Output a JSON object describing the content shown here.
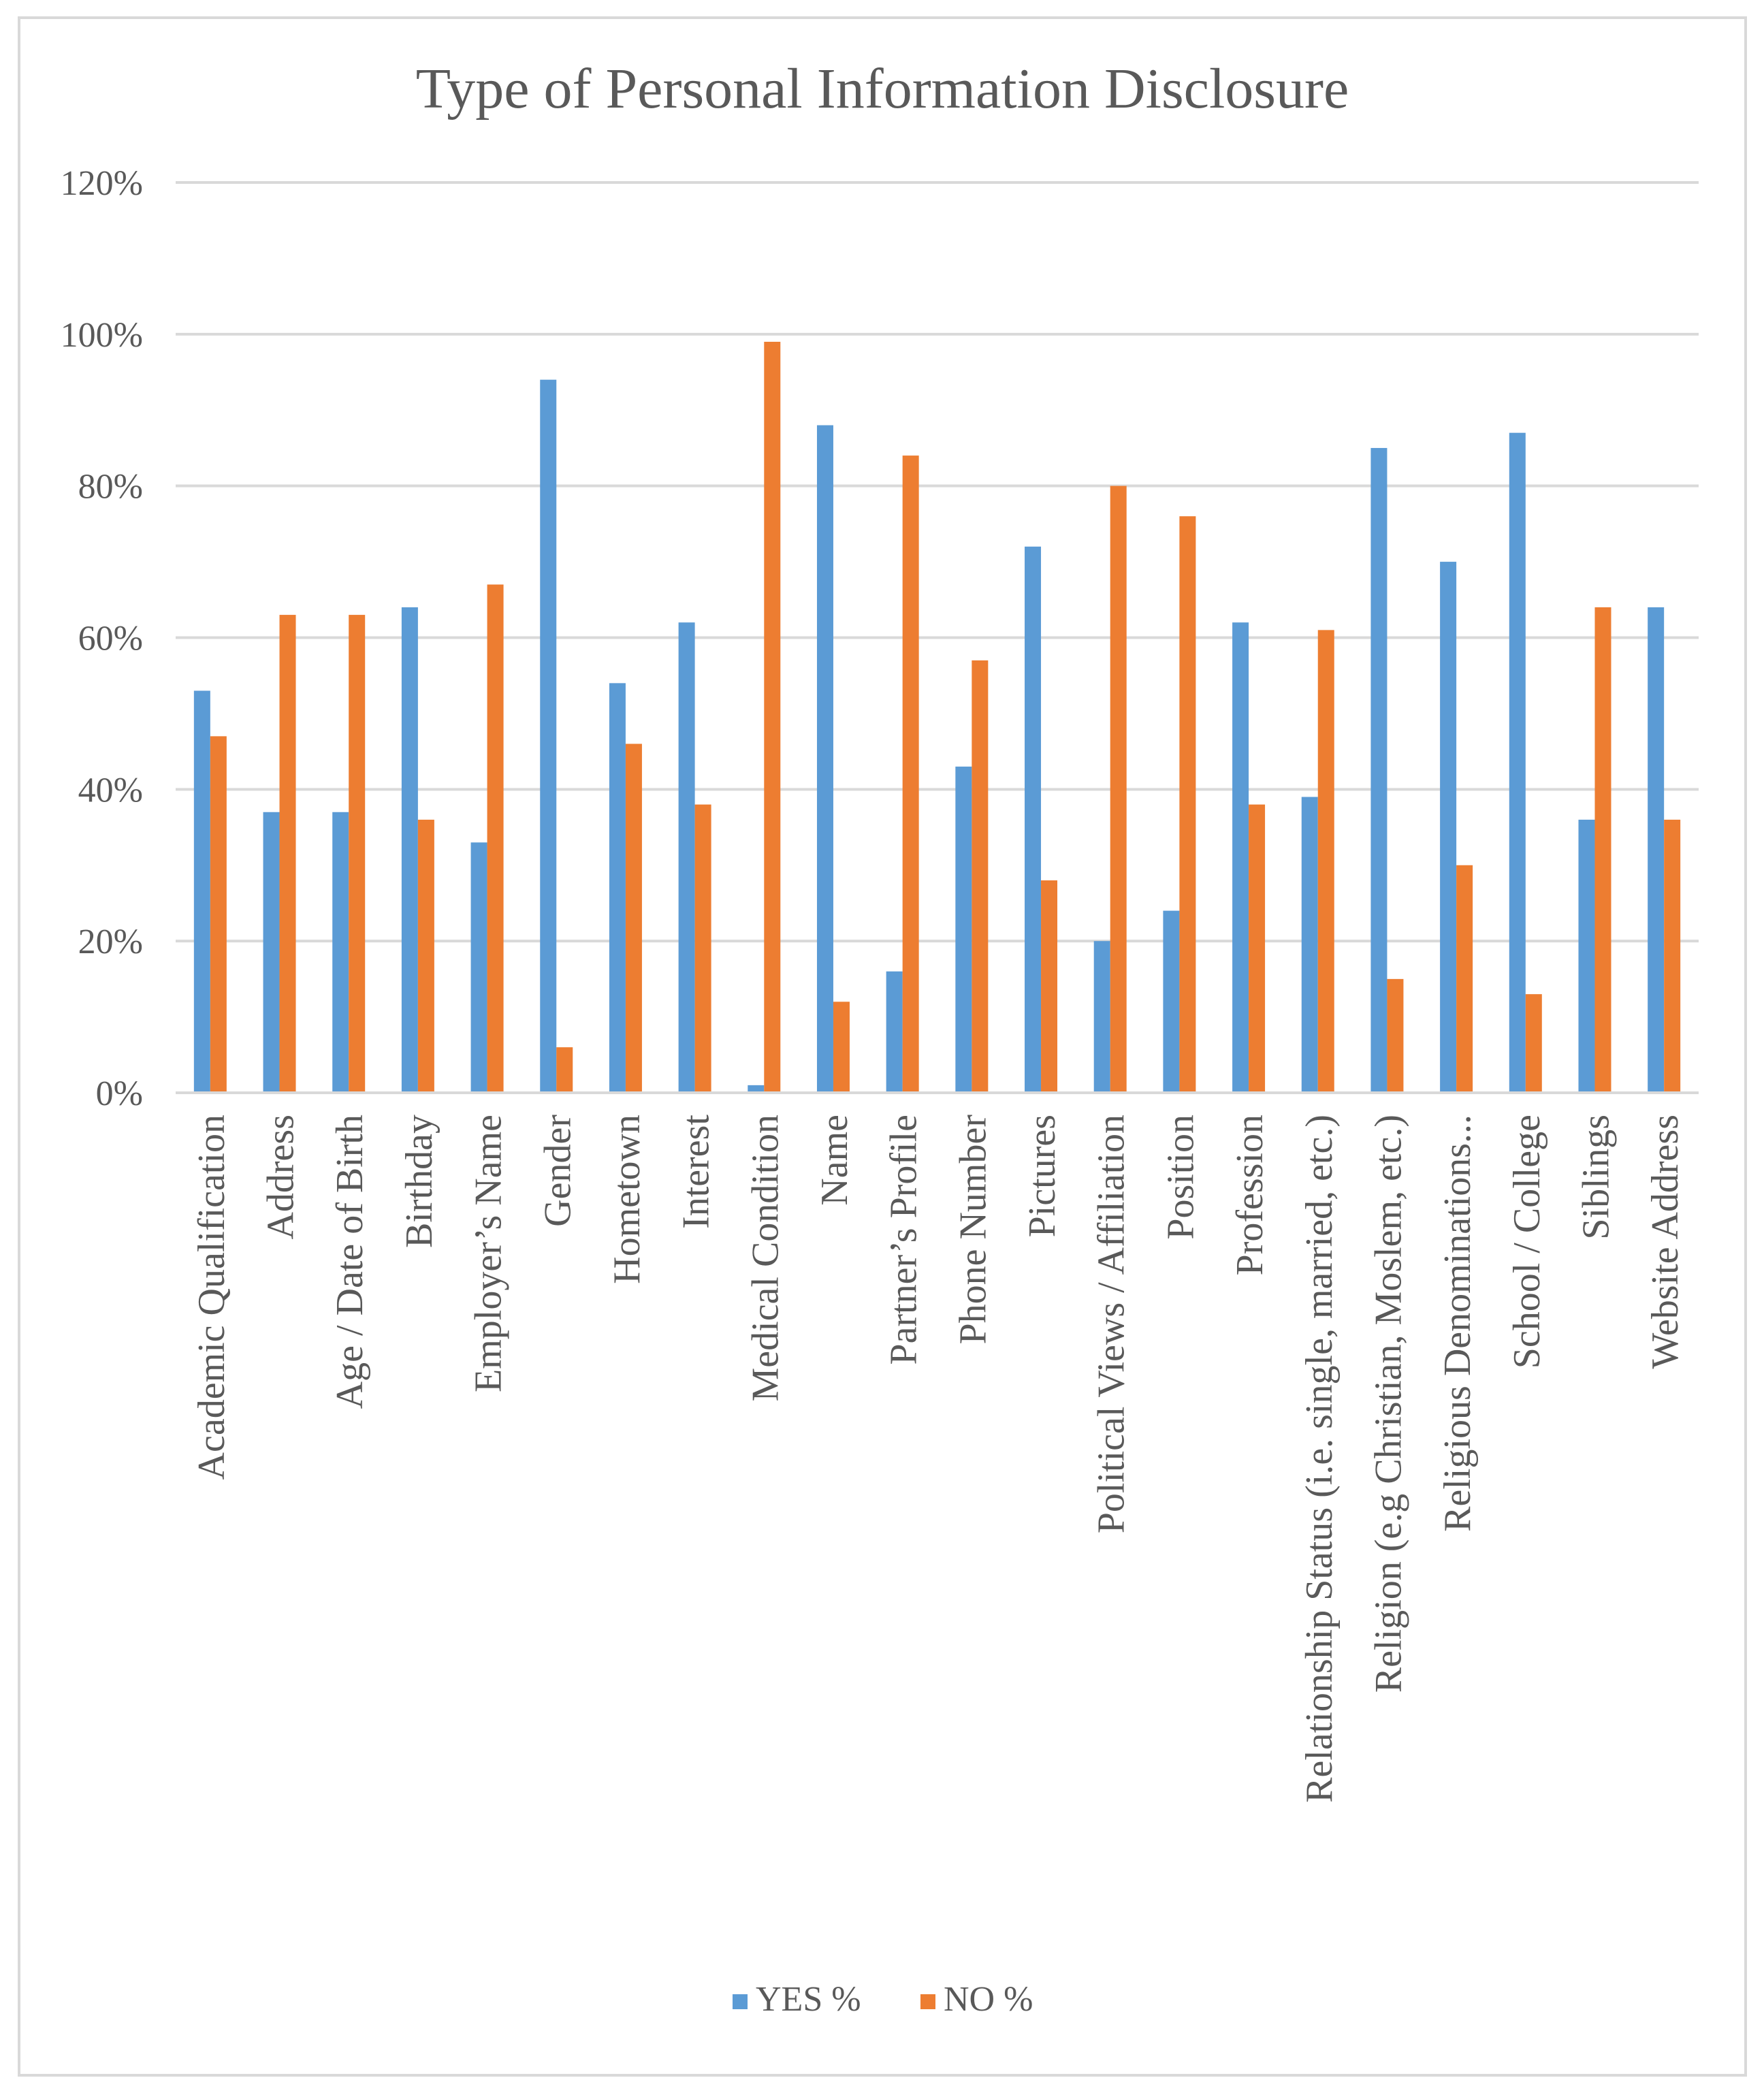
{
  "chart_data": {
    "type": "bar",
    "title": "Type of Personal Information Disclosure",
    "xlabel": "",
    "ylabel": "",
    "ylim": [
      0,
      1.2
    ],
    "yticks": [
      0,
      0.2,
      0.4,
      0.6,
      0.8,
      1.0,
      1.2
    ],
    "ytick_labels": [
      "0%",
      "20%",
      "40%",
      "60%",
      "80%",
      "100%",
      "120%"
    ],
    "grid": true,
    "legend_position": "bottom",
    "categories": [
      "Academic Qualification",
      "Address",
      "Age / Date of Birth",
      "Birthday",
      "Employer’s Name",
      "Gender",
      "Hometown",
      "Interest",
      "Medical Condition",
      "Name",
      "Partner’s Profile",
      "Phone Number",
      "Pictures",
      "Political Views / Affiliation",
      "Position",
      "Profession",
      "Relationship Status (i.e. single, married, etc.)",
      "Religion (e.g Christian, Moslem, etc.)",
      "Religious Denominations...",
      "School / College",
      "Siblings",
      "Website Address"
    ],
    "series": [
      {
        "name": "YES %",
        "color": "#5b9bd5",
        "values": [
          0.53,
          0.37,
          0.37,
          0.64,
          0.33,
          0.94,
          0.54,
          0.62,
          0.01,
          0.88,
          0.16,
          0.43,
          0.72,
          0.2,
          0.24,
          0.62,
          0.39,
          0.85,
          0.7,
          0.87,
          0.36,
          0.64
        ]
      },
      {
        "name": "NO %",
        "color": "#ed7d31",
        "values": [
          0.47,
          0.63,
          0.63,
          0.36,
          0.67,
          0.06,
          0.46,
          0.38,
          0.99,
          0.12,
          0.84,
          0.57,
          0.28,
          0.8,
          0.76,
          0.38,
          0.61,
          0.15,
          0.3,
          0.13,
          0.64,
          0.36
        ]
      }
    ]
  }
}
